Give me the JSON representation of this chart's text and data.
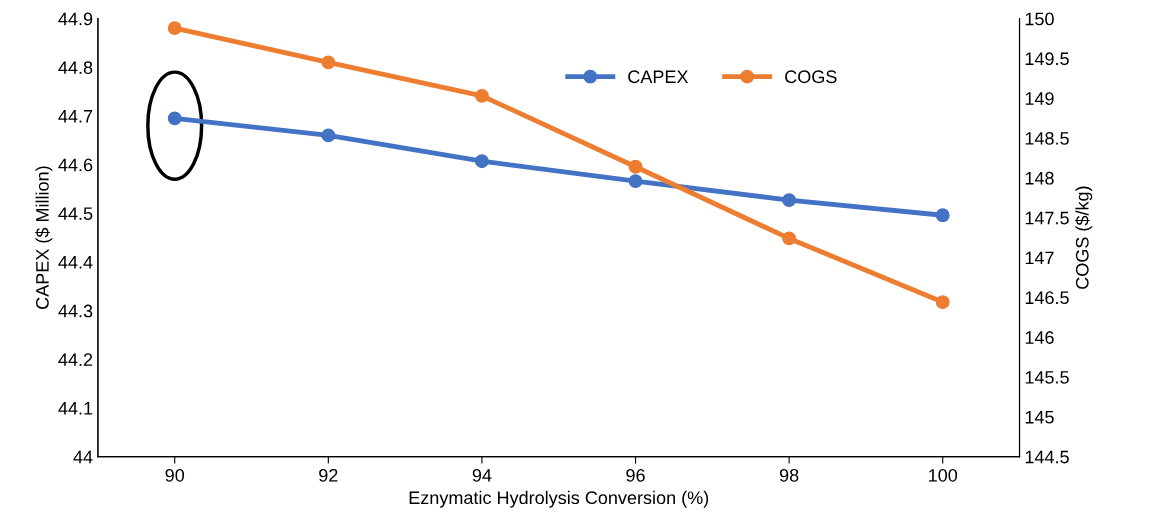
{
  "chart_data": {
    "type": "line",
    "xlabel": "Eznymatic Hydrolysis Conversion (%)",
    "ylabel": "CAPEX ($ Million)",
    "y2label": "COGS ($/kg)",
    "x": [
      90,
      92,
      94,
      96,
      98,
      100
    ],
    "series": [
      {
        "name": "CAPEX",
        "color": "#4472c4",
        "values": [
          44.695,
          44.66,
          44.607,
          44.566,
          44.527,
          44.496
        ]
      },
      {
        "name": "COGS",
        "color": "#ed7d31",
        "axis": "y2",
        "values": [
          149.88,
          149.45,
          149.03,
          148.14,
          147.24,
          146.44
        ]
      }
    ],
    "xlim": [
      89,
      101
    ],
    "xticks": [
      90,
      92,
      94,
      96,
      98,
      100
    ],
    "ylim": [
      44,
      44.9
    ],
    "yticks": [
      44,
      44.1,
      44.2,
      44.3,
      44.4,
      44.5,
      44.6,
      44.7,
      44.8,
      44.9
    ],
    "y2lim": [
      144.5,
      150
    ],
    "y2ticks": [
      144.5,
      145,
      145.5,
      146,
      146.5,
      147,
      147.5,
      148,
      148.5,
      149,
      149.5,
      150
    ],
    "marker": "circle",
    "line_style": "solid",
    "legend": "top right",
    "grid": false
  }
}
